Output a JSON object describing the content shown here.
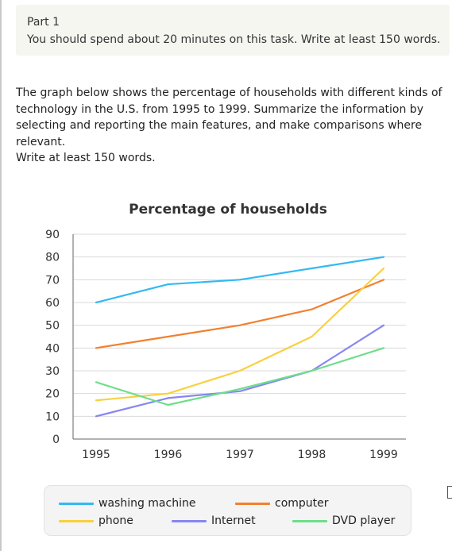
{
  "header": {
    "part": "Part 1",
    "instruction": "You should spend about 20 minutes on this task. Write at least 150 words."
  },
  "prompt": {
    "description": "The graph below shows the percentage of households with different kinds of technology in the U.S. from 1995 to 1999. Summarize the information by selecting and reporting the main features, and make comparisons where relevant.",
    "requirement": "Write at least 150 words."
  },
  "chart_data": {
    "type": "line",
    "title": "Percentage of households",
    "xlabel": "",
    "ylabel": "",
    "x": [
      "1995",
      "1996",
      "1997",
      "1998",
      "1999"
    ],
    "ylim": [
      0,
      90
    ],
    "yticks": [
      0,
      10,
      20,
      30,
      40,
      50,
      60,
      70,
      80,
      90
    ],
    "grid": true,
    "legend_position": "bottom",
    "series": [
      {
        "name": "washing machine",
        "color": "#33b9f2",
        "values": [
          60,
          68,
          70,
          75,
          80
        ]
      },
      {
        "name": "computer",
        "color": "#f2802f",
        "values": [
          40,
          45,
          50,
          57,
          70
        ]
      },
      {
        "name": "phone",
        "color": "#f9d040",
        "values": [
          17,
          20,
          30,
          45,
          75
        ]
      },
      {
        "name": "Internet",
        "color": "#8886f2",
        "values": [
          10,
          18,
          21,
          30,
          50
        ]
      },
      {
        "name": "DVD player",
        "color": "#6ede8a",
        "values": [
          25,
          15,
          22,
          30,
          40
        ]
      }
    ]
  }
}
